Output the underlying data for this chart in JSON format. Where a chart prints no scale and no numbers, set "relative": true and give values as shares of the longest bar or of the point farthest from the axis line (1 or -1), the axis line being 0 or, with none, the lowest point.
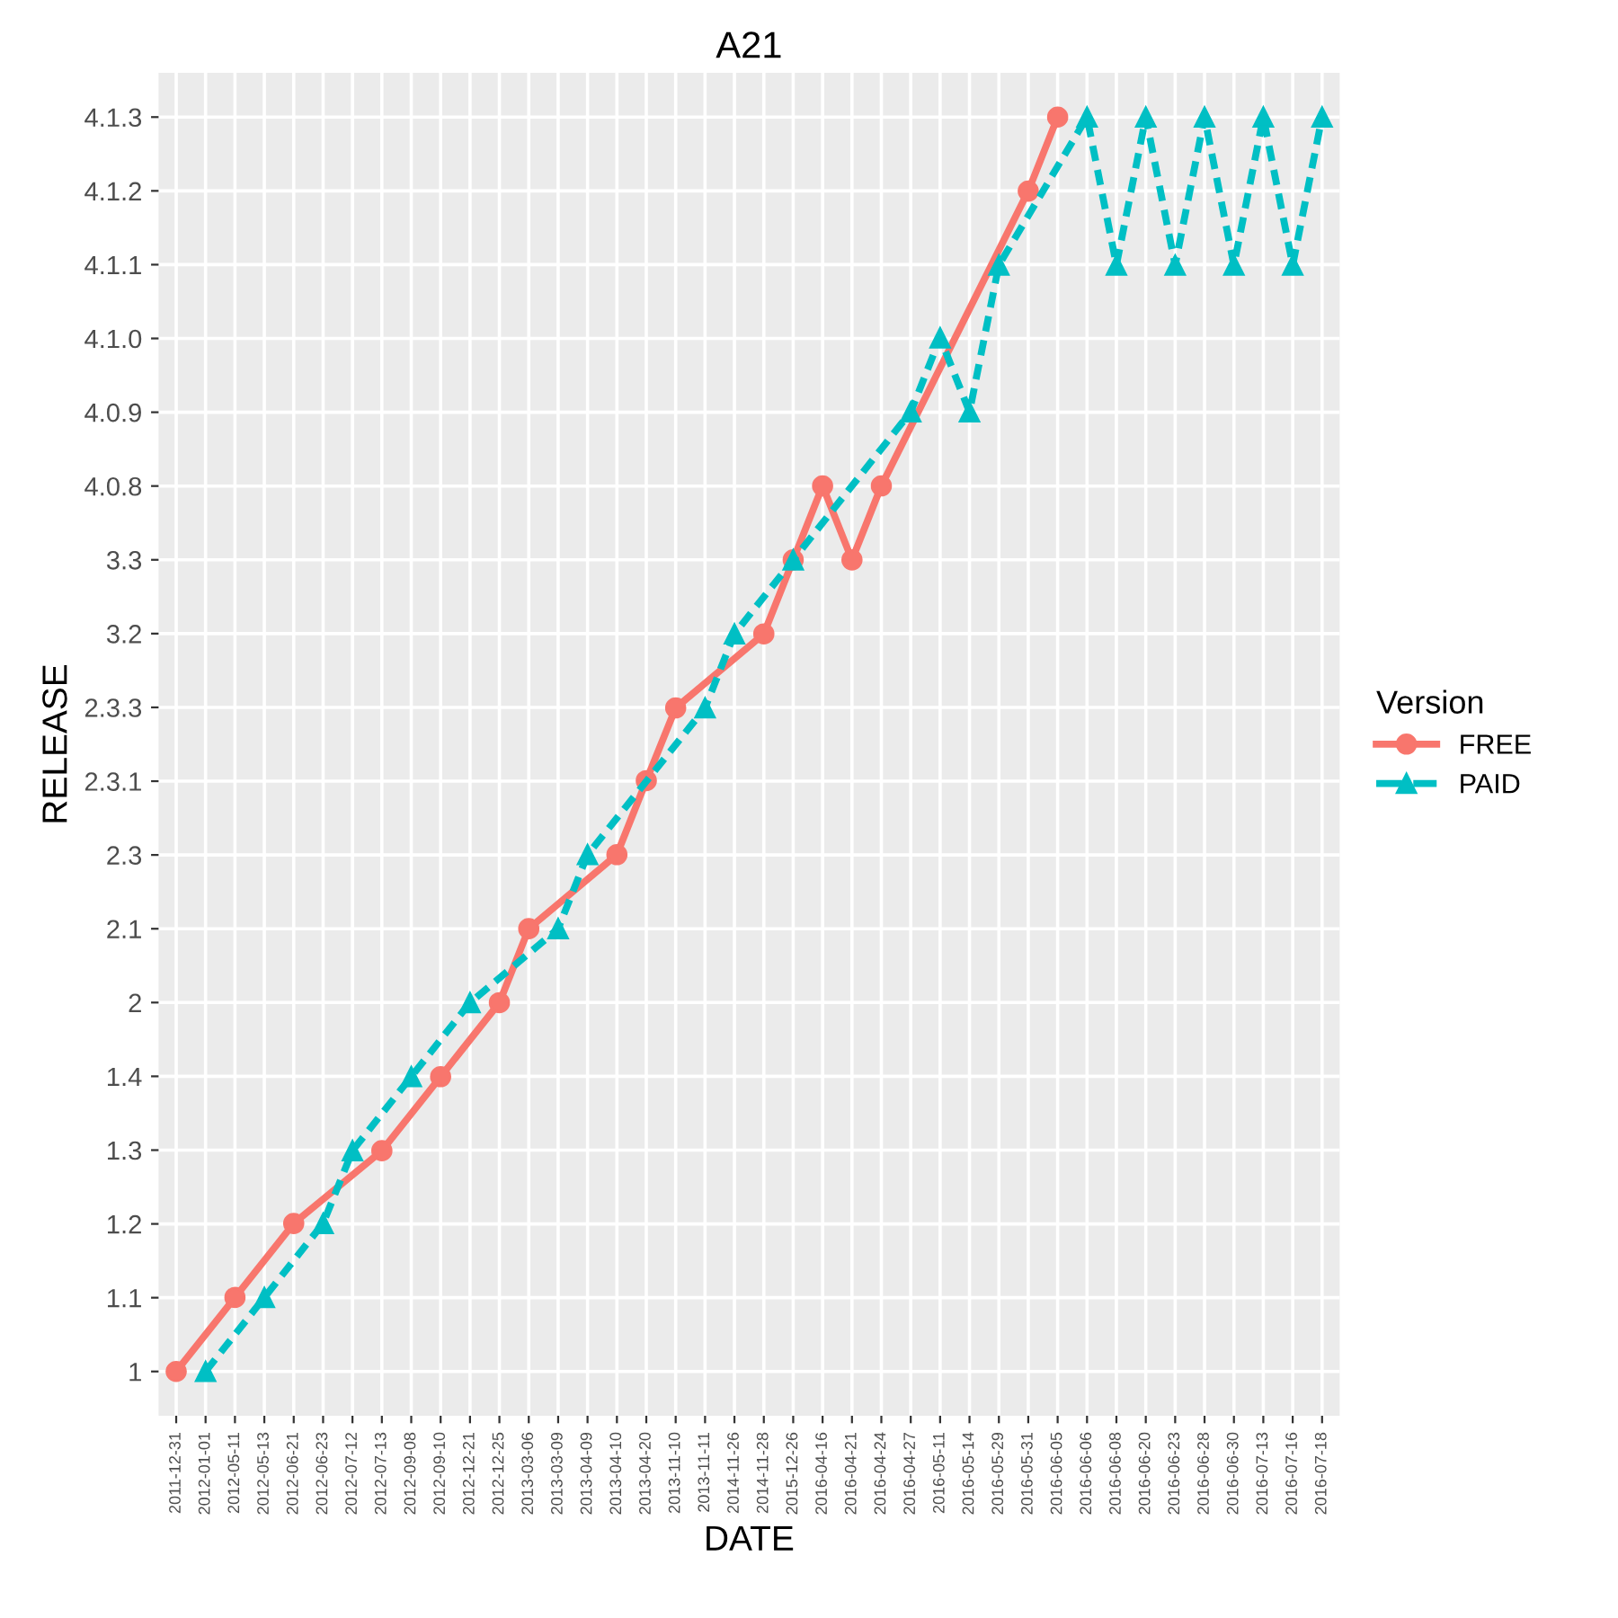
{
  "chart_data": {
    "type": "line",
    "title": "A21",
    "xlabel": "DATE",
    "ylabel": "RELEASE",
    "legend_title": "Version",
    "legend": "right",
    "grid": true,
    "relative": true,
    "categories": [
      "2011-12-31",
      "2012-01-01",
      "2012-05-11",
      "2012-05-13",
      "2012-06-21",
      "2012-06-23",
      "2012-07-12",
      "2012-07-13",
      "2012-09-08",
      "2012-09-10",
      "2012-12-21",
      "2012-12-25",
      "2013-03-06",
      "2013-03-09",
      "2013-04-09",
      "2013-04-10",
      "2013-04-20",
      "2013-11-10",
      "2013-11-11",
      "2014-11-26",
      "2014-11-28",
      "2015-12-26",
      "2016-04-16",
      "2016-04-21",
      "2016-04-24",
      "2016-04-27",
      "2016-05-11",
      "2016-05-14",
      "2016-05-29",
      "2016-05-31",
      "2016-06-05",
      "2016-06-06",
      "2016-06-08",
      "2016-06-20",
      "2016-06-23",
      "2016-06-28",
      "2016-06-30",
      "2016-07-13",
      "2016-07-16",
      "2016-07-18"
    ],
    "y_categories": [
      "4.1.3",
      "4.1.2",
      "4.1.1",
      "4.1.0",
      "4.0.9",
      "4.0.8",
      "3.3",
      "3.2",
      "2.3.3",
      "2.3.1",
      "2.3",
      "2.1",
      "2",
      "1.4",
      "1.3",
      "1.2",
      "1.1",
      "1"
    ],
    "series": [
      {
        "name": "FREE",
        "color": "#f8766d",
        "marker": "circle",
        "line_style": "solid",
        "values": [
          0,
          null,
          0.059,
          null,
          0.118,
          null,
          null,
          0.176,
          null,
          0.235,
          null,
          0.294,
          0.353,
          null,
          null,
          0.412,
          0.471,
          0.529,
          null,
          null,
          0.588,
          0.647,
          0.706,
          0.647,
          0.706,
          null,
          null,
          null,
          null,
          0.941,
          1,
          null,
          null,
          null,
          null,
          null,
          null,
          null,
          null,
          null
        ]
      },
      {
        "name": "PAID",
        "color": "#00bfc4",
        "marker": "triangle",
        "line_style": "dashed",
        "values": [
          null,
          0,
          null,
          0.059,
          null,
          0.118,
          0.176,
          null,
          0.235,
          null,
          0.294,
          null,
          null,
          0.353,
          0.412,
          null,
          null,
          null,
          0.529,
          0.588,
          null,
          0.647,
          null,
          null,
          null,
          0.765,
          0.824,
          0.765,
          0.882,
          null,
          null,
          1,
          0.882,
          1,
          0.882,
          1,
          0.882,
          1,
          0.882,
          1
        ]
      }
    ]
  }
}
